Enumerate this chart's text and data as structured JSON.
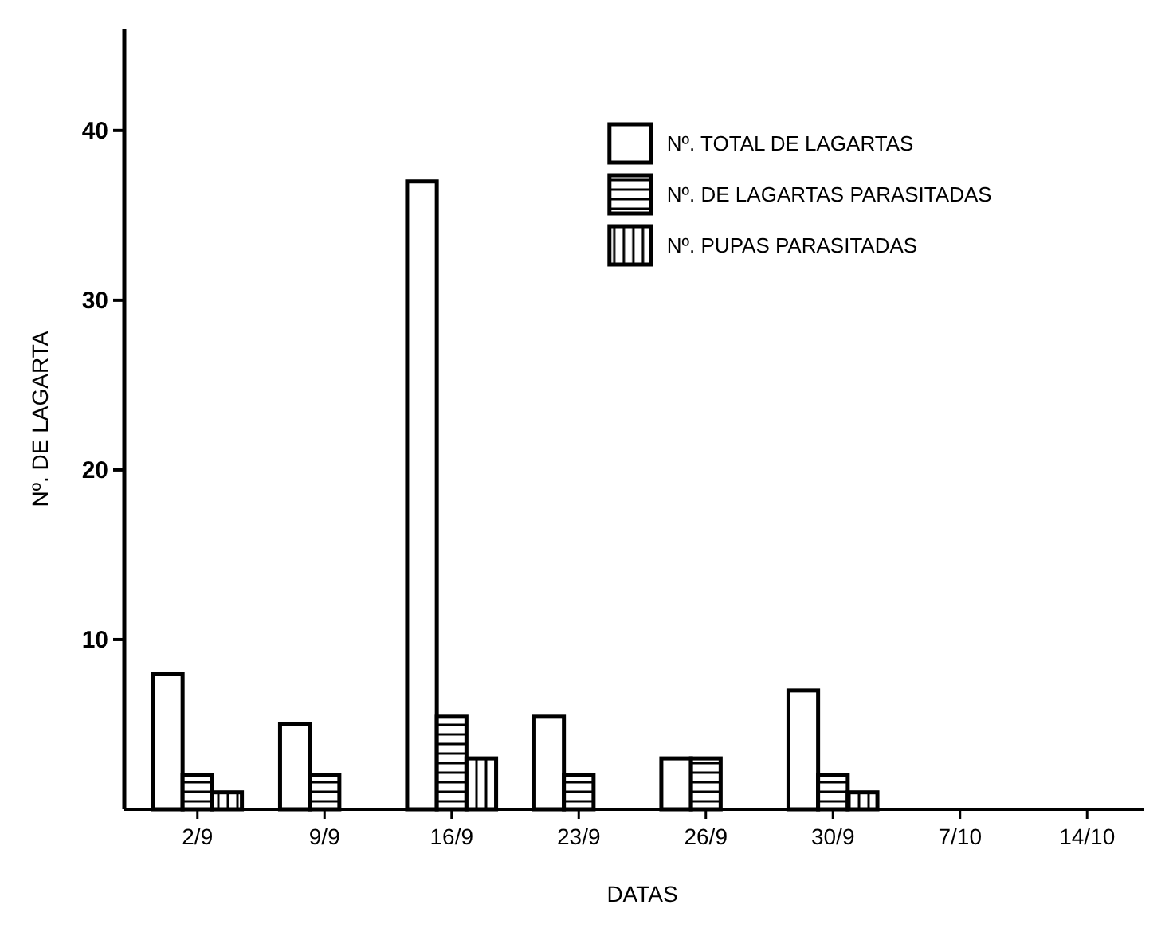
{
  "chart_data": {
    "type": "bar",
    "xlabel": "DATAS",
    "ylabel": "Nº. DE LAGARTA",
    "categories": [
      "2/9",
      "9/9",
      "16/9",
      "23/9",
      "26/9",
      "30/9",
      "7/10",
      "14/10"
    ],
    "series": [
      {
        "name": "Nº. TOTAL DE LAGARTAS",
        "color": "#000000",
        "values": [
          8,
          5,
          37,
          5.5,
          3,
          7,
          0,
          0
        ]
      },
      {
        "name": "Nº. DE LAGARTAS PARASITADAS",
        "color": "#000000",
        "values": [
          2,
          2,
          5.5,
          2,
          3,
          2,
          0,
          0
        ]
      },
      {
        "name": "Nº. PUPAS PARASITADAS",
        "color": "#000000",
        "values": [
          1,
          0,
          3,
          0,
          0,
          1,
          0,
          0
        ]
      }
    ],
    "ylim": [
      0,
      46
    ],
    "yticks": [
      10,
      20,
      30,
      40
    ],
    "grid": false,
    "legend": "top right"
  }
}
